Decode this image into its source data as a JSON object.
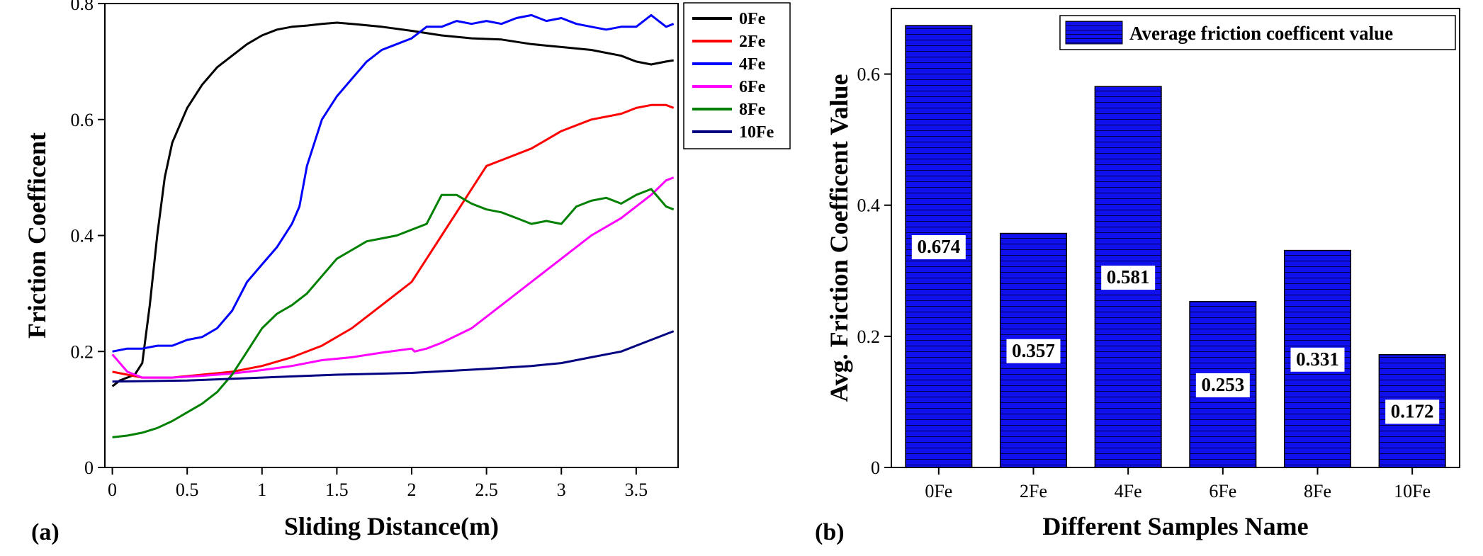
{
  "chart_data": [
    {
      "type": "line",
      "panel_label": "(a)",
      "xlabel": "Sliding Distance(m)",
      "ylabel": "Friction Coefficent",
      "xlim": [
        -0.05,
        3.78
      ],
      "ylim": [
        0,
        0.8
      ],
      "xticks": [
        0,
        0.5,
        1,
        1.5,
        2,
        2.5,
        3,
        3.5
      ],
      "xtick_labels": [
        "0",
        "0.5",
        "1",
        "1.5",
        "2",
        "2.5",
        "3",
        "3.5"
      ],
      "yticks": [
        0,
        0.2,
        0.4,
        0.6,
        0.8
      ],
      "ytick_labels": [
        "0",
        "0.2",
        "0.4",
        "0.6",
        "0.8"
      ],
      "legend_position": "top-right-outside",
      "series": [
        {
          "name": "0Fe",
          "color": "#000000",
          "x": [
            0,
            0.05,
            0.1,
            0.15,
            0.2,
            0.25,
            0.3,
            0.35,
            0.4,
            0.5,
            0.6,
            0.7,
            0.8,
            0.9,
            1.0,
            1.1,
            1.2,
            1.3,
            1.4,
            1.5,
            1.6,
            1.8,
            2.0,
            2.2,
            2.4,
            2.6,
            2.8,
            3.0,
            3.2,
            3.4,
            3.5,
            3.6,
            3.7,
            3.75
          ],
          "y": [
            0.14,
            0.15,
            0.155,
            0.16,
            0.18,
            0.28,
            0.4,
            0.5,
            0.56,
            0.62,
            0.66,
            0.69,
            0.71,
            0.73,
            0.745,
            0.755,
            0.76,
            0.762,
            0.765,
            0.767,
            0.765,
            0.76,
            0.753,
            0.745,
            0.74,
            0.738,
            0.73,
            0.725,
            0.72,
            0.71,
            0.7,
            0.695,
            0.7,
            0.702
          ]
        },
        {
          "name": "2Fe",
          "color": "#ff0000",
          "x": [
            0,
            0.2,
            0.4,
            0.6,
            0.8,
            1.0,
            1.2,
            1.4,
            1.6,
            1.8,
            2.0,
            2.1,
            2.2,
            2.3,
            2.4,
            2.5,
            2.6,
            2.8,
            3.0,
            3.2,
            3.4,
            3.5,
            3.6,
            3.7,
            3.75
          ],
          "y": [
            0.165,
            0.155,
            0.155,
            0.16,
            0.165,
            0.175,
            0.19,
            0.21,
            0.24,
            0.28,
            0.32,
            0.36,
            0.4,
            0.44,
            0.48,
            0.52,
            0.53,
            0.55,
            0.58,
            0.6,
            0.61,
            0.62,
            0.625,
            0.625,
            0.62
          ]
        },
        {
          "name": "4Fe",
          "color": "#0000ff",
          "x": [
            0,
            0.1,
            0.2,
            0.3,
            0.4,
            0.5,
            0.6,
            0.7,
            0.8,
            0.9,
            1.0,
            1.1,
            1.2,
            1.25,
            1.3,
            1.4,
            1.5,
            1.6,
            1.7,
            1.8,
            1.9,
            2.0,
            2.1,
            2.2,
            2.3,
            2.4,
            2.5,
            2.6,
            2.7,
            2.8,
            2.9,
            3.0,
            3.1,
            3.2,
            3.3,
            3.4,
            3.5,
            3.6,
            3.7,
            3.75
          ],
          "y": [
            0.2,
            0.205,
            0.205,
            0.21,
            0.21,
            0.22,
            0.225,
            0.24,
            0.27,
            0.32,
            0.35,
            0.38,
            0.42,
            0.45,
            0.52,
            0.6,
            0.64,
            0.67,
            0.7,
            0.72,
            0.73,
            0.74,
            0.76,
            0.76,
            0.77,
            0.765,
            0.77,
            0.765,
            0.775,
            0.78,
            0.77,
            0.775,
            0.765,
            0.76,
            0.755,
            0.76,
            0.76,
            0.78,
            0.76,
            0.765
          ]
        },
        {
          "name": "6Fe",
          "color": "#ff00ff",
          "x": [
            0,
            0.1,
            0.2,
            0.4,
            0.6,
            0.8,
            1.0,
            1.2,
            1.4,
            1.6,
            1.8,
            2.0,
            2.02,
            2.1,
            2.2,
            2.4,
            2.6,
            2.8,
            3.0,
            3.2,
            3.4,
            3.6,
            3.7,
            3.75
          ],
          "y": [
            0.195,
            0.165,
            0.155,
            0.155,
            0.158,
            0.162,
            0.168,
            0.175,
            0.185,
            0.19,
            0.198,
            0.205,
            0.2,
            0.205,
            0.215,
            0.24,
            0.28,
            0.32,
            0.36,
            0.4,
            0.43,
            0.47,
            0.495,
            0.5
          ]
        },
        {
          "name": "8Fe",
          "color": "#008000",
          "x": [
            0,
            0.1,
            0.2,
            0.3,
            0.4,
            0.5,
            0.6,
            0.7,
            0.8,
            0.9,
            1.0,
            1.1,
            1.2,
            1.3,
            1.4,
            1.5,
            1.6,
            1.7,
            1.8,
            1.9,
            2.0,
            2.1,
            2.2,
            2.3,
            2.4,
            2.5,
            2.6,
            2.7,
            2.8,
            2.9,
            3.0,
            3.1,
            3.2,
            3.3,
            3.4,
            3.5,
            3.6,
            3.7,
            3.75
          ],
          "y": [
            0.052,
            0.055,
            0.06,
            0.068,
            0.08,
            0.095,
            0.11,
            0.13,
            0.16,
            0.2,
            0.24,
            0.265,
            0.28,
            0.3,
            0.33,
            0.36,
            0.375,
            0.39,
            0.395,
            0.4,
            0.41,
            0.42,
            0.47,
            0.47,
            0.455,
            0.445,
            0.44,
            0.43,
            0.42,
            0.425,
            0.42,
            0.45,
            0.46,
            0.465,
            0.455,
            0.47,
            0.48,
            0.45,
            0.445
          ]
        },
        {
          "name": "10Fe",
          "color": "#000080",
          "x": [
            0,
            0.5,
            1.0,
            1.5,
            2.0,
            2.5,
            2.8,
            3.0,
            3.2,
            3.4,
            3.6,
            3.75
          ],
          "y": [
            0.148,
            0.15,
            0.155,
            0.16,
            0.163,
            0.17,
            0.175,
            0.18,
            0.19,
            0.2,
            0.22,
            0.235
          ]
        }
      ]
    },
    {
      "type": "bar",
      "panel_label": "(b)",
      "xlabel": "Different Samples Name",
      "ylabel": "Avg. Friction Coefficent Value",
      "ylim": [
        0,
        0.7
      ],
      "yticks": [
        0,
        0.2,
        0.4,
        0.6
      ],
      "ytick_labels": [
        "0",
        "0.2",
        "0.4",
        "0.6"
      ],
      "categories": [
        "0Fe",
        "2Fe",
        "4Fe",
        "6Fe",
        "8Fe",
        "10Fe"
      ],
      "legend_position": "top-right",
      "series": [
        {
          "name": "Average friction coefficent value",
          "color": "#0000ff",
          "values": [
            0.674,
            0.357,
            0.581,
            0.253,
            0.331,
            0.172
          ],
          "data_labels": [
            "0.674",
            "0.357",
            "0.581",
            "0.253",
            "0.331",
            "0.172"
          ]
        }
      ]
    }
  ]
}
